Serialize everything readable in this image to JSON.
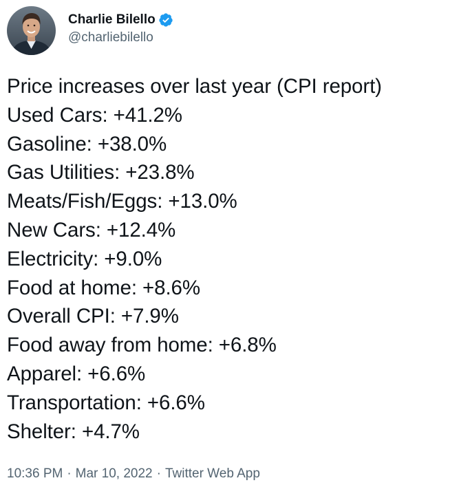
{
  "author": {
    "display_name": "Charlie Bilello",
    "handle": "@charliebilello",
    "verified": true,
    "avatar_icon": "profile-photo"
  },
  "tweet": {
    "lines": [
      "Price increases over last year (CPI report)",
      "Used Cars: +41.2%",
      "Gasoline: +38.0%",
      "Gas Utilities: +23.8%",
      "Meats/Fish/Eggs: +13.0%",
      "New Cars: +12.4%",
      "Electricity: +9.0%",
      "Food at home: +8.6%",
      "Overall CPI: +7.9%",
      "Food away from home: +6.8%",
      "Apparel: +6.6%",
      "Transportation: +6.6%",
      "Shelter: +4.7%"
    ]
  },
  "meta": {
    "time": "10:36 PM",
    "separator": "·",
    "date": "Mar 10, 2022",
    "source": "Twitter Web App"
  },
  "colors": {
    "text": "#0f1419",
    "secondary": "#536471",
    "verified": "#1d9bf0"
  }
}
